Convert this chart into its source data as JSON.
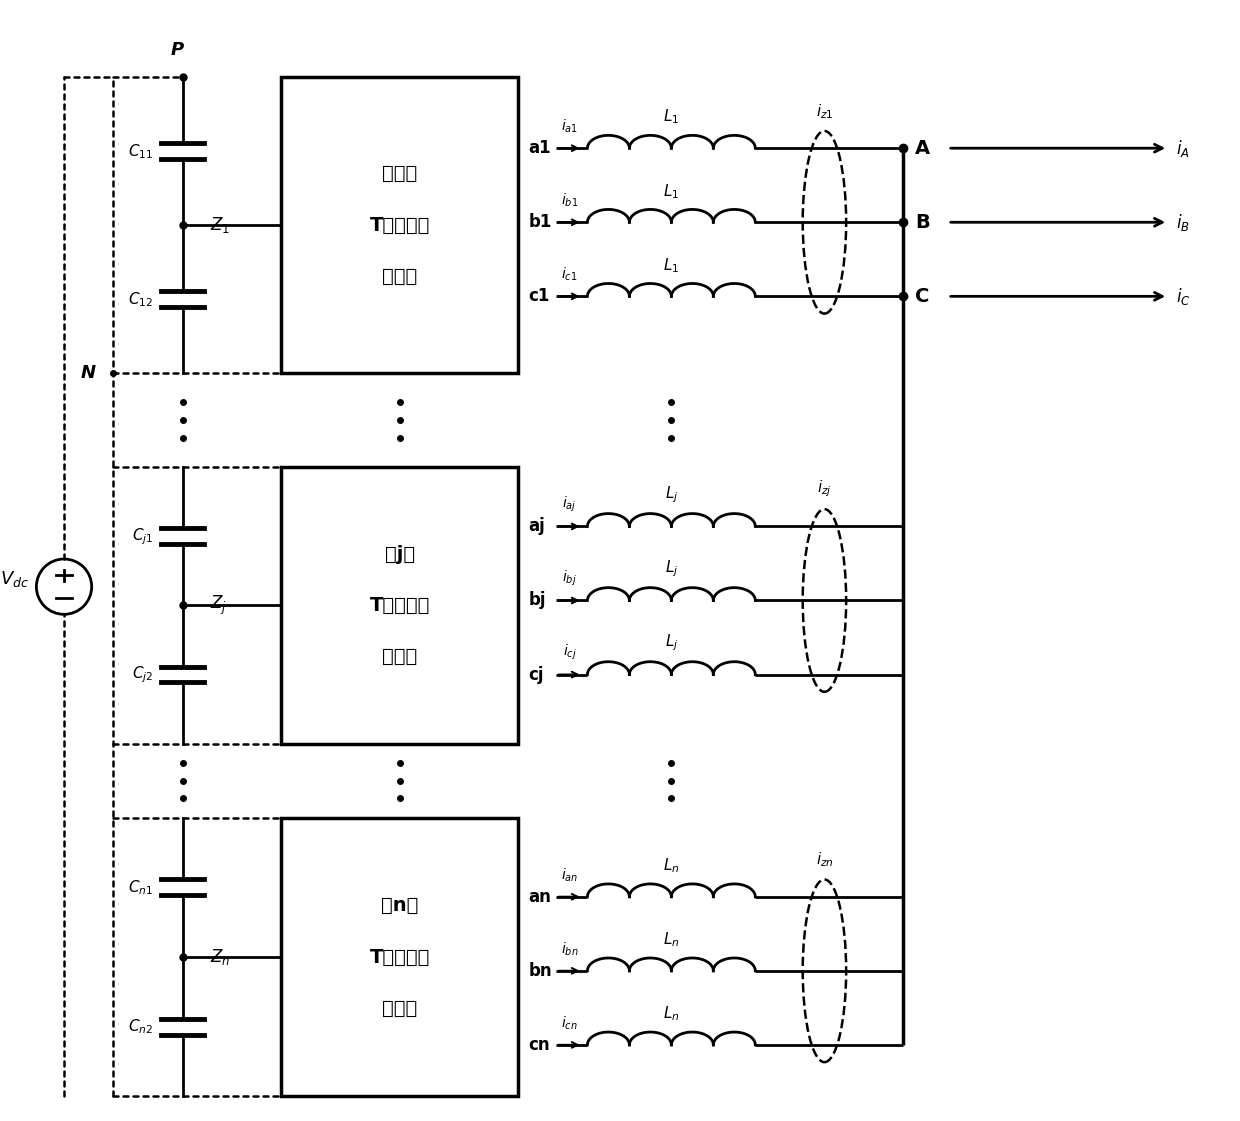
{
  "fig_width": 12.4,
  "fig_height": 11.21,
  "xVs": 0.52,
  "xBusL": 1.02,
  "xCap": 1.72,
  "xBoxL": 2.72,
  "xBoxR": 5.12,
  "xIndS": 5.82,
  "xIndE": 7.52,
  "xOval": 8.22,
  "xBusR": 9.02,
  "xOutR": 11.7,
  "yP": 10.5,
  "yN": 7.5,
  "y1a": 9.78,
  "y1b": 9.03,
  "y1c": 8.28,
  "yjTop": 6.55,
  "yjBot": 3.75,
  "yja": 5.95,
  "yjb": 5.2,
  "yjc": 4.45,
  "ynTop": 3.0,
  "ynBot": 0.18,
  "yna": 2.2,
  "ynb": 1.45,
  "ync": 0.7,
  "inv1_labels": [
    "第一个",
    "T型三电平",
    "逆变器"
  ],
  "invj_labels": [
    "第j个",
    "T型三电平",
    "逆变器"
  ],
  "invn_labels": [
    "第n个",
    "T型三电平",
    "逆变器"
  ],
  "phase1": [
    [
      "a1",
      "i_{a1}",
      "L_1"
    ],
    [
      "b1",
      "i_{b1}",
      "L_1"
    ],
    [
      "c1",
      "i_{c1}",
      "L_1"
    ]
  ],
  "phasej": [
    [
      "aj",
      "i_{aj}",
      "L_j"
    ],
    [
      "bj",
      "i_{bj}",
      "L_j"
    ],
    [
      "cj",
      "i_{cj}",
      "L_j"
    ]
  ],
  "phasen": [
    [
      "an",
      "i_{an}",
      "L_n"
    ],
    [
      "bn",
      "i_{bn}",
      "L_n"
    ],
    [
      "cn",
      "i_{cn}",
      "L_n"
    ]
  ],
  "out_nodes": [
    [
      "A",
      "i_A"
    ],
    [
      "B",
      "i_B"
    ],
    [
      "C",
      "i_C"
    ]
  ],
  "lc": "#000000",
  "dc": "#000000"
}
